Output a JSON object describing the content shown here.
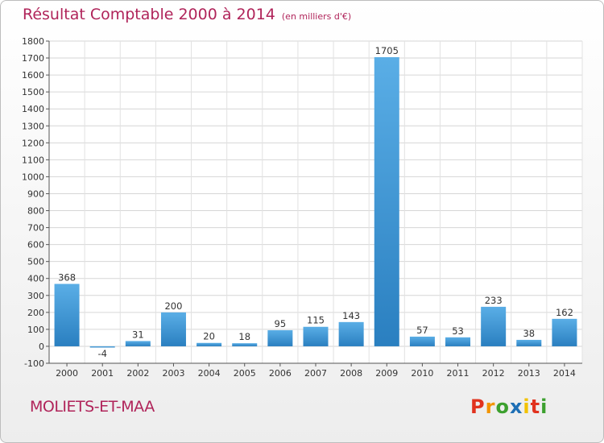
{
  "title": "Résultat Comptable 2000 à 2014",
  "unit": "(en milliers d'€)",
  "town": "MOLIETS-ET-MAA",
  "logo": {
    "letters": [
      "P",
      "r",
      "o",
      "x",
      "i",
      "t",
      "i"
    ],
    "colors": [
      "#e1321e",
      "#f29400",
      "#3ca02e",
      "#1e6fb5",
      "#f2c200",
      "#e1321e",
      "#3ca02e"
    ]
  },
  "colors": {
    "bar_light": "#5aaee6",
    "bar_dark": "#2a7fc0",
    "text": "#b0245a"
  },
  "chart_data": {
    "type": "bar",
    "title": "Résultat Comptable 2000 à 2014",
    "xlabel": "",
    "ylabel": "",
    "ylim": [
      -100,
      1800
    ],
    "yticks": [
      -100,
      0,
      100,
      200,
      300,
      400,
      500,
      600,
      700,
      800,
      900,
      1000,
      1100,
      1200,
      1300,
      1400,
      1500,
      1600,
      1700,
      1800
    ],
    "grid": true,
    "categories": [
      "2000",
      "2001",
      "2002",
      "2003",
      "2004",
      "2005",
      "2006",
      "2007",
      "2008",
      "2009",
      "2010",
      "2011",
      "2012",
      "2013",
      "2014"
    ],
    "values": [
      368,
      -4,
      31,
      200,
      20,
      18,
      95,
      115,
      143,
      1705,
      57,
      53,
      233,
      38,
      162
    ]
  }
}
